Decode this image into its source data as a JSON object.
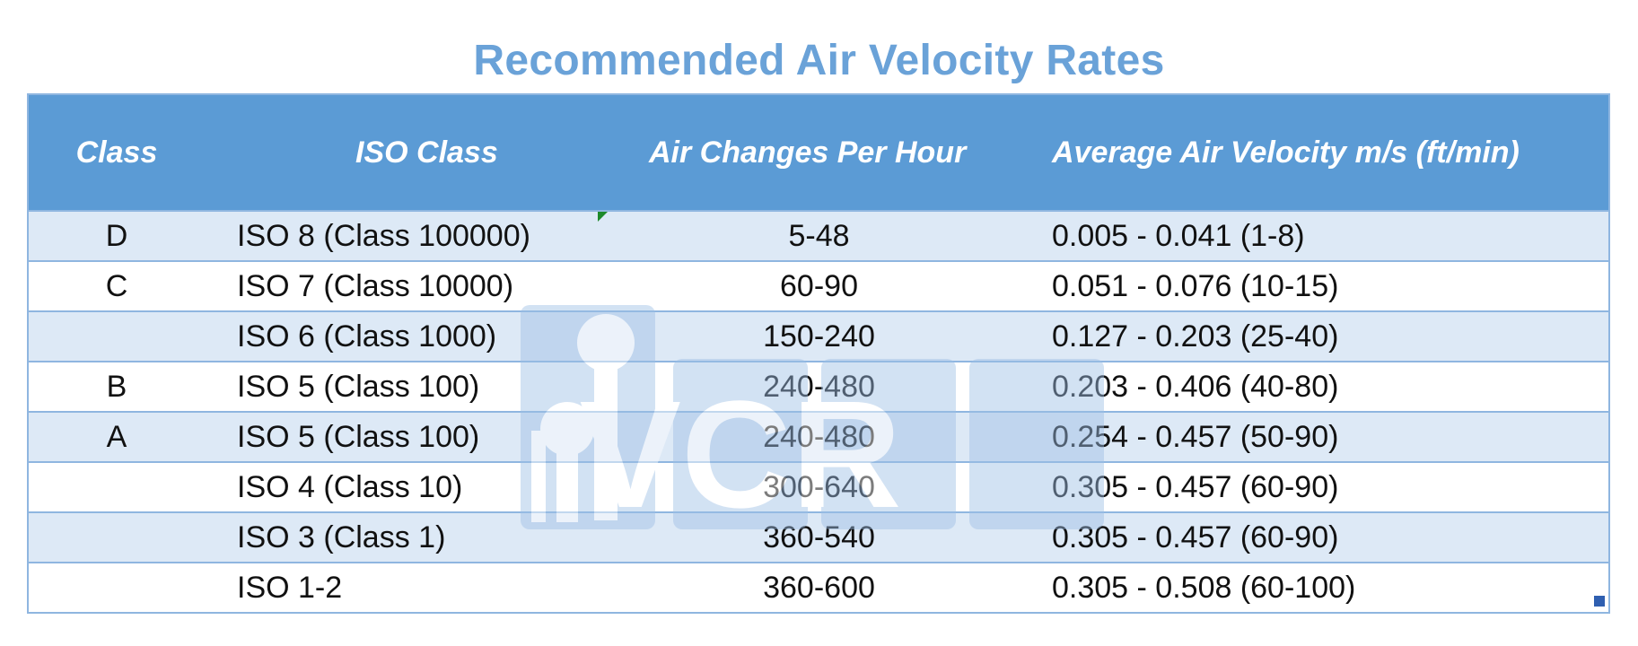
{
  "title": "Recommended Air Velocity Rates",
  "table": {
    "headers": [
      "Class",
      "ISO Class",
      "Air Changes Per Hour",
      "Average Air Velocity m/s (ft/min)"
    ],
    "rows": [
      {
        "class": "D",
        "iso": "ISO 8 (Class 100000)",
        "ach": "5-48",
        "velocity": "0.005 - 0.041 (1-8)"
      },
      {
        "class": "C",
        "iso": "ISO 7 (Class 10000)",
        "ach": "60-90",
        "velocity": "0.051 - 0.076 (10-15)"
      },
      {
        "class": "",
        "iso": "ISO 6 (Class 1000)",
        "ach": "150-240",
        "velocity": "0.127 - 0.203 (25-40)"
      },
      {
        "class": "B",
        "iso": "ISO 5 (Class 100)",
        "ach": "240-480",
        "velocity": "0.203 - 0.406 (40-80)"
      },
      {
        "class": "A",
        "iso": "ISO 5 (Class 100)",
        "ach": "240-480",
        "velocity": "0.254 - 0.457 (50-90)"
      },
      {
        "class": "",
        "iso": "ISO 4 (Class 10)",
        "ach": "300-640",
        "velocity": "0.305 - 0.457 (60-90)"
      },
      {
        "class": "",
        "iso": "ISO 3 (Class 1)",
        "ach": "360-540",
        "velocity": "0.305 - 0.457 (60-90)"
      },
      {
        "class": "",
        "iso": "ISO 1-2",
        "ach": "360-600",
        "velocity": "0.305 - 0.508 (60-100)"
      }
    ]
  },
  "watermark": {
    "text": "VCR",
    "icon": "vcr-logo-icon"
  },
  "colors": {
    "title": "#6aa2d8",
    "header_bg": "#5b9bd5",
    "band_row": "#dde9f6",
    "grid": "#8fb6e0"
  }
}
